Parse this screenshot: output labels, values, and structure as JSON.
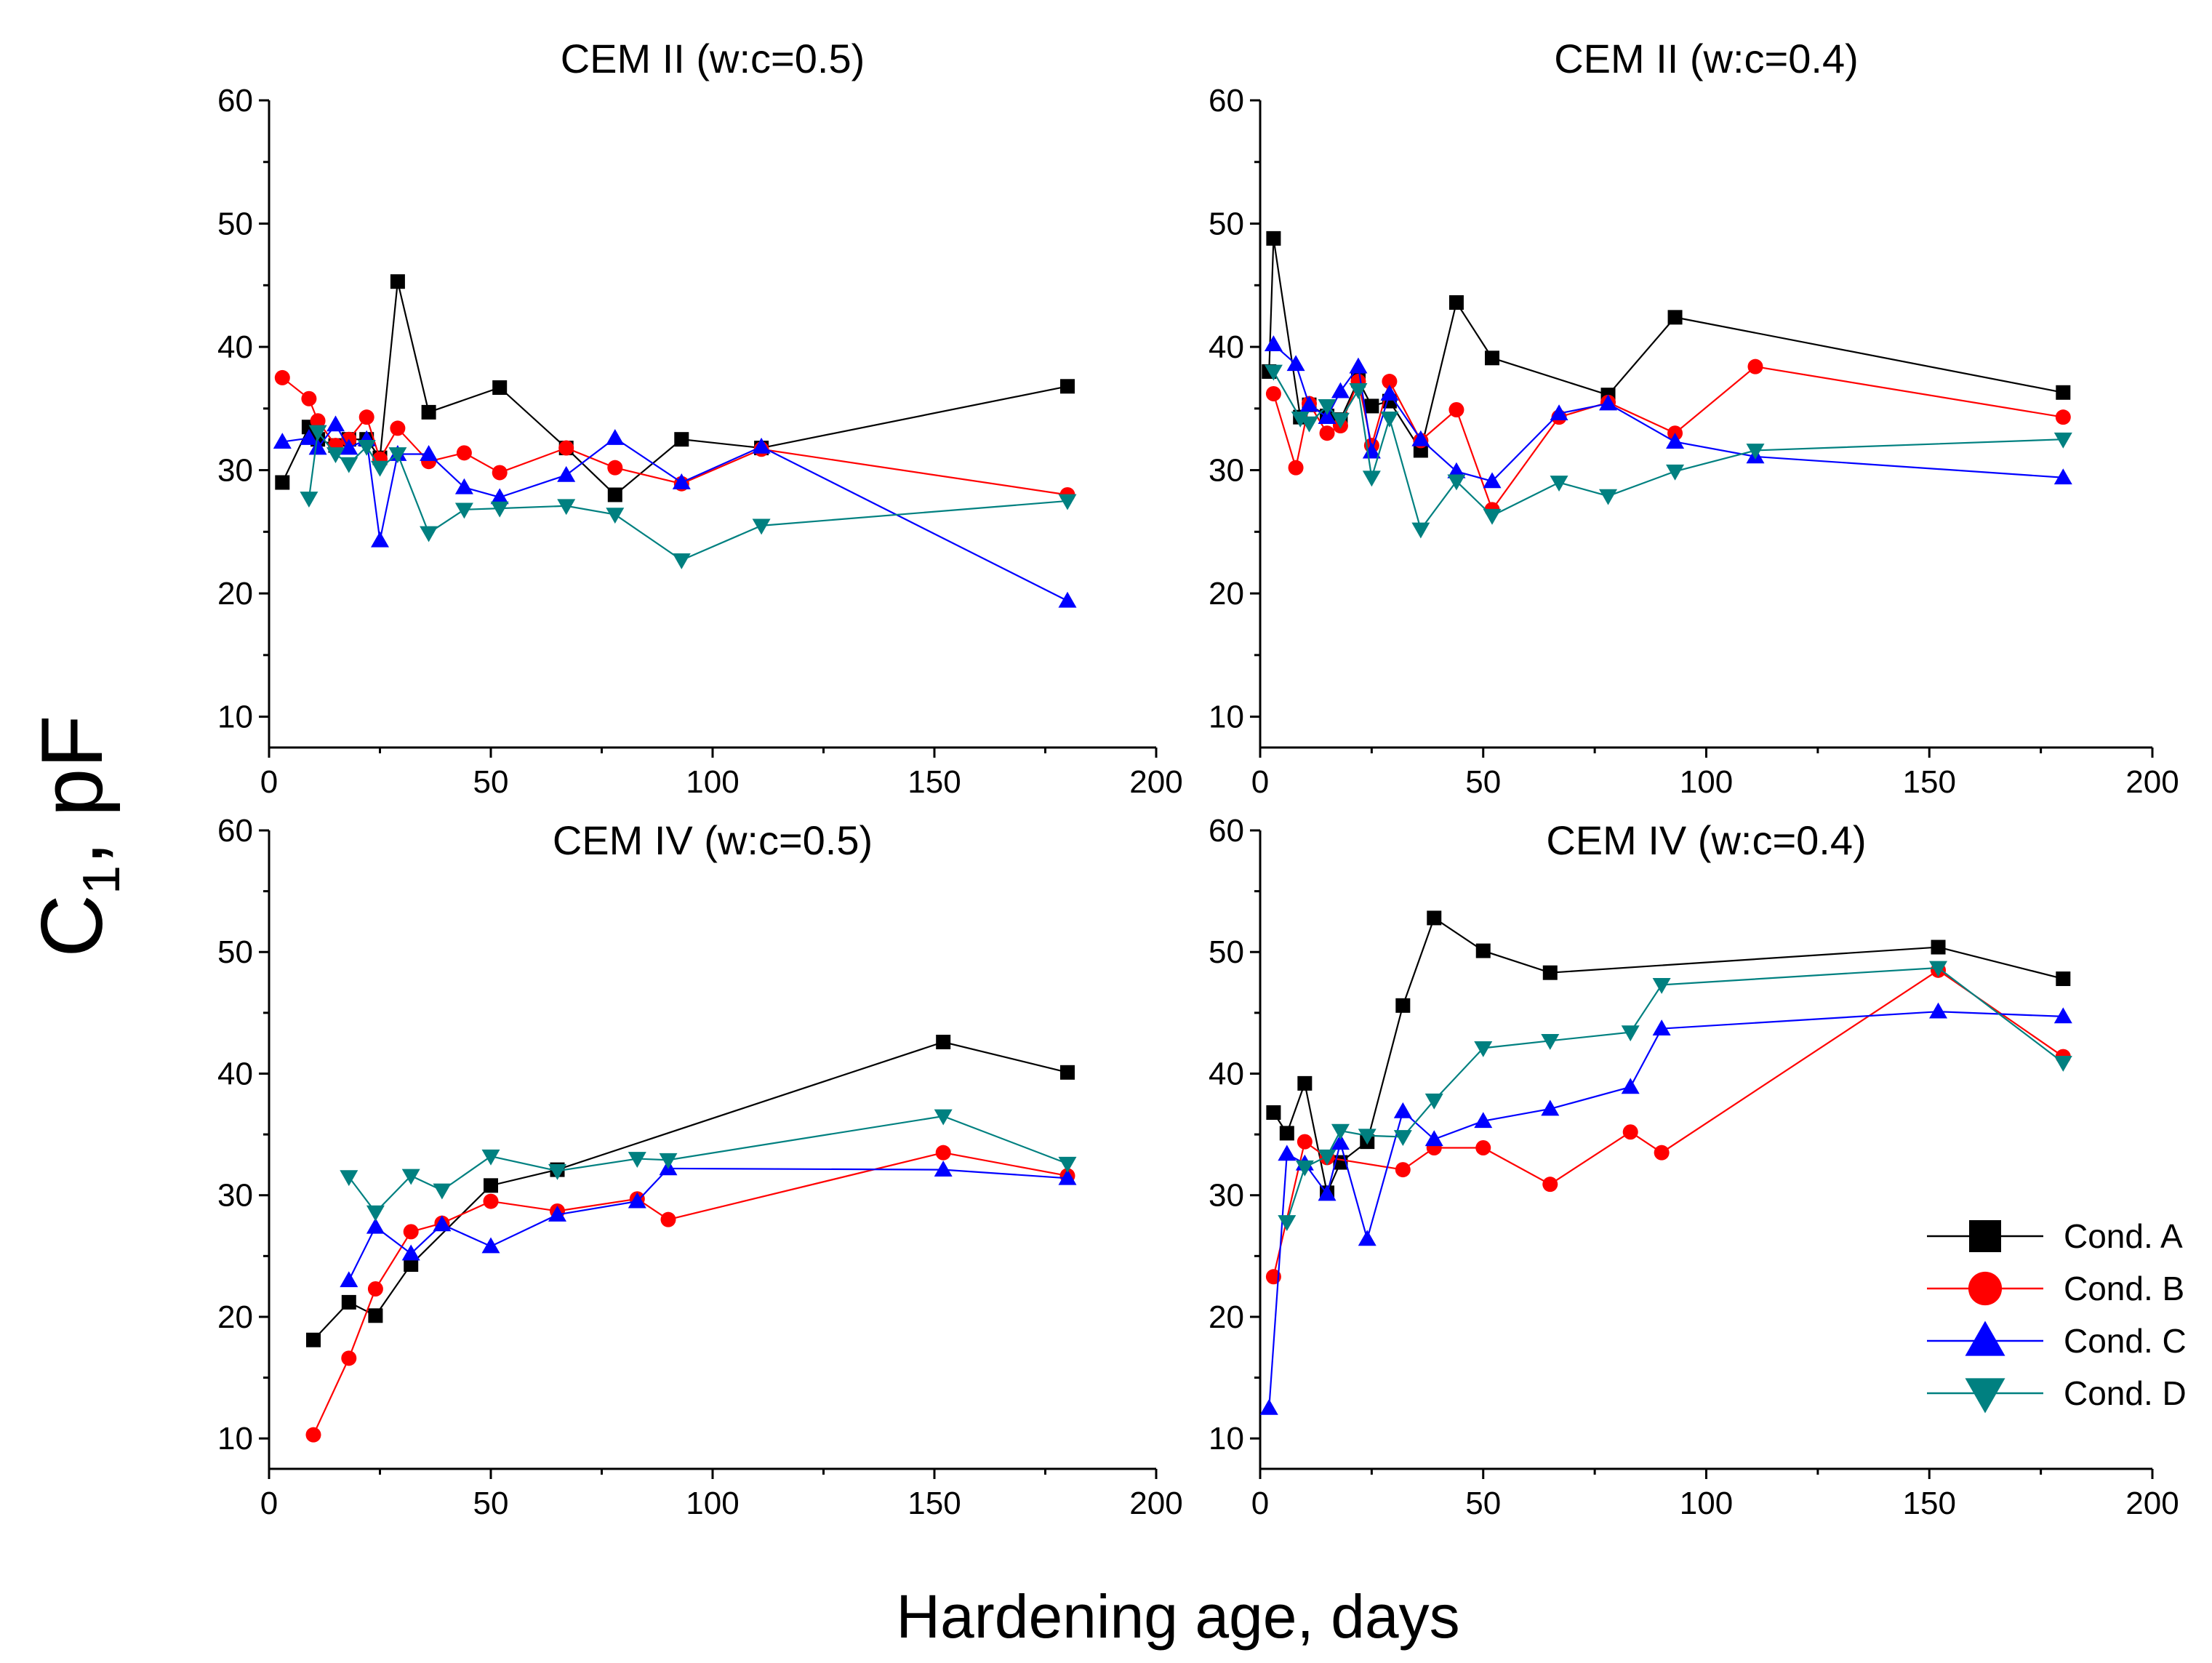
{
  "figure": {
    "ylabel_main": "C",
    "ylabel_sub": "1",
    "ylabel_tail": ", pF",
    "xlabel": "Hardening age, days"
  },
  "colors": {
    "Cond. A": "#000000",
    "Cond. B": "#ff0000",
    "Cond. C": "#0000ff",
    "Cond. D": "#008080"
  },
  "legend": {
    "items": [
      {
        "label": "Cond. A",
        "marker": "square"
      },
      {
        "label": "Cond. B",
        "marker": "circle"
      },
      {
        "label": "Cond. C",
        "marker": "triangle-up"
      },
      {
        "label": "Cond. D",
        "marker": "triangle-down"
      }
    ],
    "placement": "bottom-right of CEM IV (w:c=0.4) panel"
  },
  "chart_data": [
    {
      "type": "line",
      "title": "CEM II (w:c=0.5)",
      "xlim": [
        0,
        200
      ],
      "ylim": [
        7.5,
        60
      ],
      "xticks": [
        0,
        50,
        100,
        150,
        200
      ],
      "yticks": [
        10,
        20,
        30,
        40,
        50,
        60
      ],
      "series": [
        {
          "name": "Cond. A",
          "x": [
            3,
            9,
            11,
            15,
            18,
            22,
            25,
            29,
            36,
            52,
            67,
            78,
            93,
            111,
            180
          ],
          "y": [
            29,
            33.5,
            32.5,
            32,
            32.5,
            32.5,
            31,
            45.3,
            34.7,
            36.7,
            31.8,
            28,
            32.5,
            31.8,
            36.8
          ]
        },
        {
          "name": "Cond. B",
          "x": [
            3,
            9,
            11,
            15,
            18,
            22,
            25,
            29,
            36,
            44,
            52,
            67,
            78,
            93,
            111,
            180
          ],
          "y": [
            37.5,
            35.8,
            34,
            32,
            32.5,
            34.3,
            30.9,
            33.4,
            30.7,
            31.4,
            29.8,
            31.8,
            30.2,
            28.9,
            31.7,
            28
          ]
        },
        {
          "name": "Cond. C",
          "x": [
            3,
            9,
            11,
            15,
            18,
            22,
            25,
            29,
            36,
            44,
            52,
            67,
            78,
            93,
            111,
            180
          ],
          "y": [
            32.3,
            32.6,
            31.8,
            33.7,
            31.8,
            32.5,
            24.3,
            31.3,
            31.3,
            28.6,
            27.8,
            29.6,
            32.6,
            29,
            31.9,
            19.4
          ]
        },
        {
          "name": "Cond. D",
          "x": [
            9,
            11,
            15,
            18,
            22,
            25,
            29,
            36,
            44,
            52,
            67,
            78,
            93,
            111,
            180
          ],
          "y": [
            27.7,
            33.1,
            31.3,
            30.5,
            31.9,
            30.2,
            31.3,
            24.9,
            26.8,
            26.9,
            27.1,
            26.4,
            22.7,
            25.5,
            27.5
          ]
        }
      ]
    },
    {
      "type": "line",
      "title": "CEM II (w:c=0.4)",
      "xlim": [
        0,
        200
      ],
      "ylim": [
        7.5,
        60
      ],
      "xticks": [
        0,
        50,
        100,
        150,
        200
      ],
      "yticks": [
        10,
        20,
        30,
        40,
        50,
        60
      ],
      "series": [
        {
          "name": "Cond. A",
          "x": [
            2,
            3,
            9,
            11,
            15,
            18,
            22,
            25,
            29,
            36,
            44,
            52,
            78,
            93,
            180
          ],
          "y": [
            38,
            48.8,
            34.3,
            35.3,
            34.4,
            34.1,
            37.3,
            35.2,
            35.6,
            31.6,
            43.6,
            39.1,
            36.1,
            42.4,
            36.3
          ]
        },
        {
          "name": "Cond. B",
          "x": [
            3,
            8,
            11,
            15,
            18,
            22,
            25,
            29,
            36,
            44,
            52,
            67,
            78,
            93,
            111,
            180
          ],
          "y": [
            36.2,
            30.2,
            35.4,
            33,
            33.6,
            37.2,
            32,
            37.2,
            32.4,
            34.9,
            26.8,
            34.3,
            35.5,
            33,
            38.4,
            34.3
          ]
        },
        {
          "name": "Cond. C",
          "x": [
            3,
            8,
            11,
            15,
            18,
            22,
            25,
            29,
            36,
            44,
            52,
            67,
            78,
            93,
            111,
            180
          ],
          "y": [
            40.2,
            38.6,
            35.3,
            34.3,
            36.4,
            38.4,
            31.5,
            36.2,
            32.5,
            29.9,
            29.1,
            34.6,
            35.4,
            32.3,
            31.1,
            29.4
          ]
        },
        {
          "name": "Cond. D",
          "x": [
            3,
            9,
            11,
            15,
            18,
            22,
            25,
            29,
            36,
            44,
            52,
            67,
            78,
            93,
            111,
            180
          ],
          "y": [
            38,
            34.2,
            33.8,
            35.2,
            34.1,
            36.5,
            29.4,
            34.2,
            25.2,
            29.1,
            26.3,
            29,
            27.9,
            29.9,
            31.6,
            32.5
          ]
        }
      ]
    },
    {
      "type": "line",
      "title": "CEM IV (w:c=0.5)",
      "xlim": [
        0,
        200
      ],
      "ylim": [
        7.5,
        60
      ],
      "xticks": [
        0,
        50,
        100,
        150,
        200
      ],
      "yticks": [
        10,
        20,
        30,
        40,
        50,
        60
      ],
      "series": [
        {
          "name": "Cond. A",
          "x": [
            10,
            18,
            24,
            32,
            50,
            65,
            152,
            180
          ],
          "y": [
            18.1,
            21.2,
            20.1,
            24.3,
            30.8,
            32.1,
            42.6,
            40.1
          ]
        },
        {
          "name": "Cond. B",
          "x": [
            10,
            18,
            24,
            32,
            39,
            50,
            65,
            83,
            90,
            152,
            180
          ],
          "y": [
            10.3,
            16.6,
            22.3,
            27,
            27.7,
            29.5,
            28.7,
            29.7,
            28,
            33.5,
            31.6
          ]
        },
        {
          "name": "Cond. C",
          "x": [
            18,
            24,
            32,
            39,
            50,
            65,
            83,
            90,
            152,
            180
          ],
          "y": [
            23,
            27.4,
            25.2,
            27.6,
            25.8,
            28.4,
            29.5,
            32.2,
            32.1,
            31.4
          ]
        },
        {
          "name": "Cond. D",
          "x": [
            18,
            24,
            32,
            39,
            50,
            65,
            83,
            90,
            152,
            180
          ],
          "y": [
            31.5,
            28.6,
            31.6,
            30.4,
            33.2,
            32,
            33,
            32.9,
            36.5,
            32.6
          ]
        }
      ]
    },
    {
      "type": "line",
      "title": "CEM IV (w:c=0.4)",
      "xlim": [
        0,
        200
      ],
      "ylim": [
        7.5,
        60
      ],
      "xticks": [
        0,
        50,
        100,
        150,
        200
      ],
      "yticks": [
        10,
        20,
        30,
        40,
        50,
        60
      ],
      "series": [
        {
          "name": "Cond. A",
          "x": [
            3,
            6,
            10,
            15,
            18,
            24,
            32,
            39,
            50,
            65,
            152,
            180
          ],
          "y": [
            36.8,
            35.1,
            39.2,
            30.2,
            32.7,
            34.4,
            45.6,
            52.8,
            50.1,
            48.3,
            50.4,
            47.8
          ]
        },
        {
          "name": "Cond. B",
          "x": [
            3,
            10,
            15,
            32,
            39,
            50,
            65,
            83,
            90,
            152,
            180
          ],
          "y": [
            23.3,
            34.4,
            33.1,
            32.1,
            33.9,
            33.9,
            30.9,
            35.2,
            33.5,
            48.5,
            41.4
          ]
        },
        {
          "name": "Cond. C",
          "x": [
            2,
            6,
            10,
            15,
            18,
            24,
            32,
            39,
            50,
            65,
            83,
            90,
            152,
            180
          ],
          "y": [
            12.5,
            33.4,
            32.6,
            30.1,
            34.3,
            26.4,
            36.9,
            34.6,
            36.1,
            37.1,
            38.9,
            43.7,
            45.1,
            44.7
          ]
        },
        {
          "name": "Cond. D",
          "x": [
            6,
            10,
            15,
            18,
            24,
            32,
            39,
            50,
            65,
            83,
            90,
            152,
            180
          ],
          "y": [
            27.8,
            32.3,
            33.2,
            35.3,
            34.9,
            34.8,
            37.8,
            42.1,
            42.7,
            43.4,
            47.3,
            48.7,
            40.9
          ]
        }
      ]
    }
  ]
}
